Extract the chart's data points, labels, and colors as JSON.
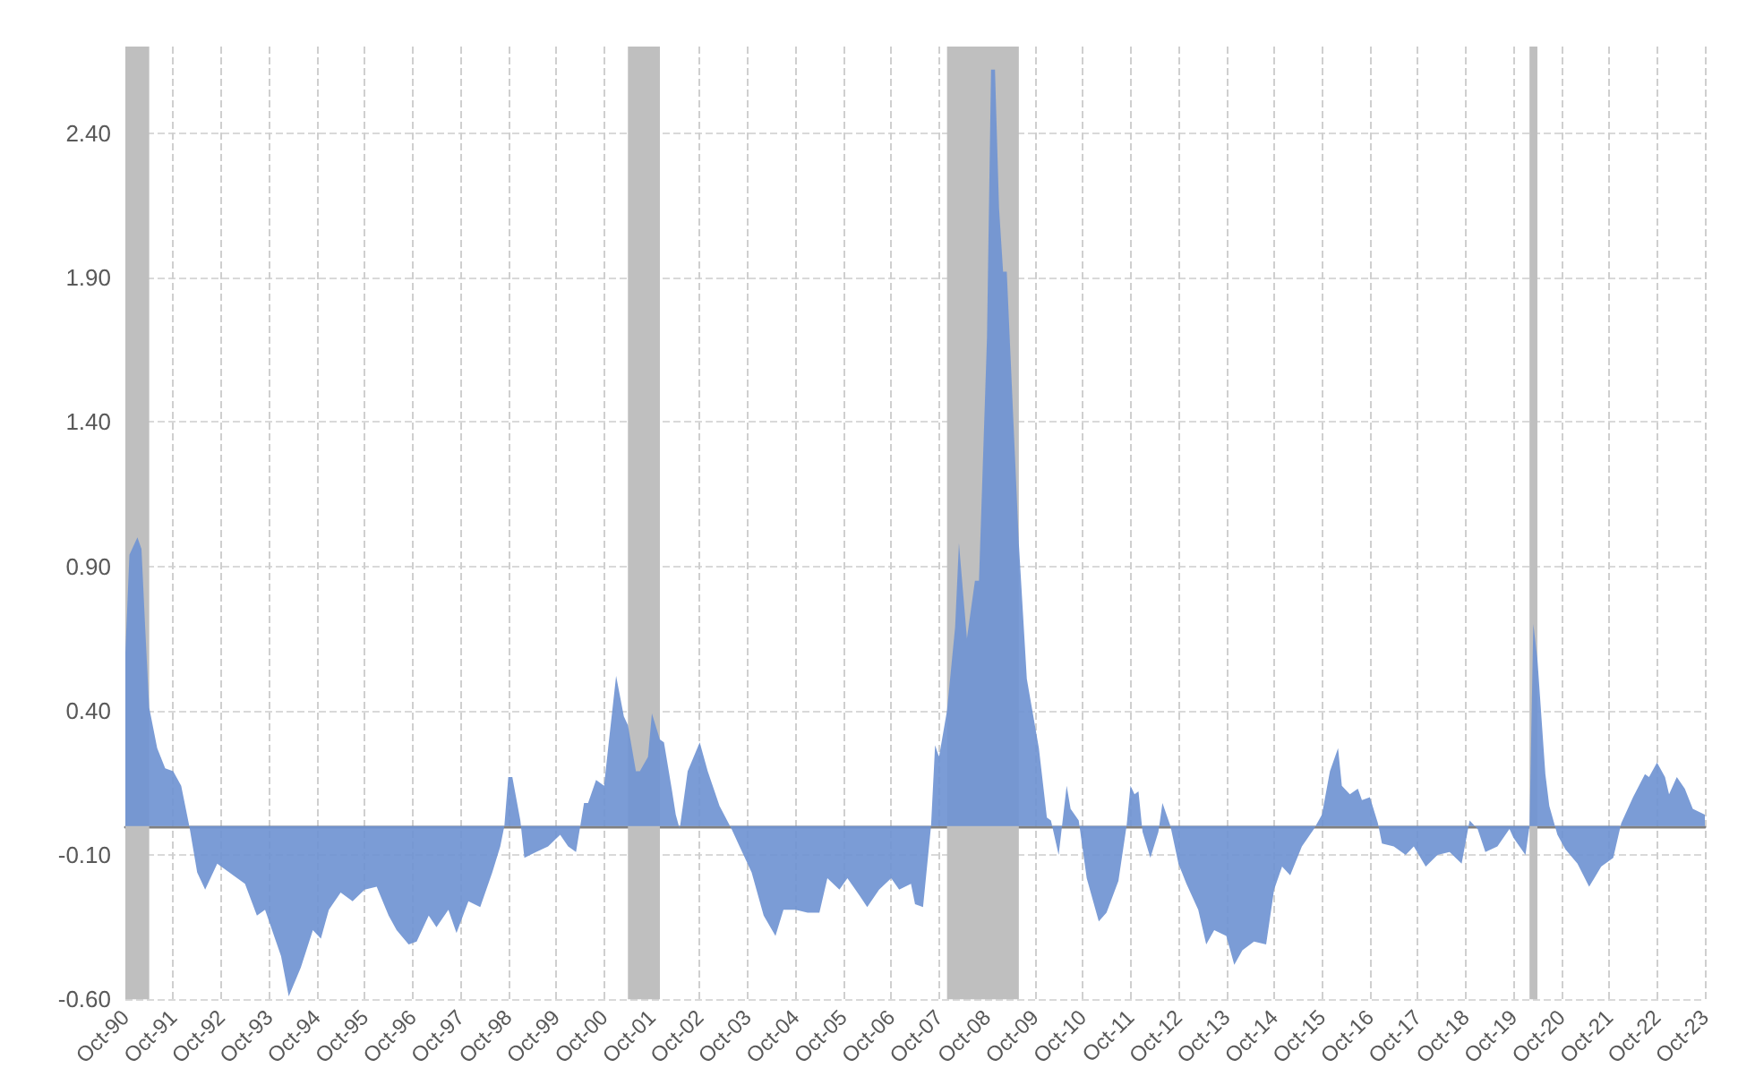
{
  "chart_data": {
    "type": "area",
    "x": [
      "1990-10",
      "1990-11",
      "1991-01",
      "1991-02",
      "1991-03",
      "1991-04",
      "1991-06",
      "1991-08",
      "1991-10",
      "1991-12",
      "1992-02",
      "1992-04",
      "1992-06",
      "1992-09",
      "1993-01",
      "1993-04",
      "1993-07",
      "1993-09",
      "1994-01",
      "1994-03",
      "1994-06",
      "1994-09",
      "1994-11",
      "1995-01",
      "1995-04",
      "1995-07",
      "1995-10",
      "1996-01",
      "1996-04",
      "1996-06",
      "1996-09",
      "1996-11",
      "1997-02",
      "1997-04",
      "1997-07",
      "1997-09",
      "1997-12",
      "1998-03",
      "1998-06",
      "1998-08",
      "1998-09",
      "1998-10",
      "1998-11",
      "1999-01",
      "1999-02",
      "1999-05",
      "1999-08",
      "1999-11",
      "2000-01",
      "2000-03",
      "2000-05",
      "2000-06",
      "2000-08",
      "2000-10",
      "2000-11",
      "2001-01",
      "2001-03",
      "2001-04",
      "2001-06",
      "2001-07",
      "2001-09",
      "2001-10",
      "2001-12",
      "2002-01",
      "2002-03",
      "2002-04",
      "2002-05",
      "2002-07",
      "2002-10",
      "2002-12",
      "2003-03",
      "2003-06",
      "2003-08",
      "2003-11",
      "2004-02",
      "2004-05",
      "2004-07",
      "2004-10",
      "2005-01",
      "2005-04",
      "2005-06",
      "2005-09",
      "2005-11",
      "2006-02",
      "2006-04",
      "2006-07",
      "2006-10",
      "2006-12",
      "2007-03",
      "2007-04",
      "2007-06",
      "2007-08",
      "2007-09",
      "2007-10",
      "2007-12",
      "2008-02",
      "2008-03",
      "2008-05",
      "2008-07",
      "2008-08",
      "2008-10",
      "2008-11",
      "2008-12",
      "2009-01",
      "2009-02",
      "2009-03",
      "2009-06",
      "2009-08",
      "2009-11",
      "2010-01",
      "2010-02",
      "2010-04",
      "2010-06",
      "2010-07",
      "2010-09",
      "2010-11",
      "2011-02",
      "2011-04",
      "2011-07",
      "2011-09",
      "2011-10",
      "2011-11",
      "2011-12",
      "2012-01",
      "2012-03",
      "2012-05",
      "2012-06",
      "2012-08",
      "2012-10",
      "2012-12",
      "2013-03",
      "2013-05",
      "2013-07",
      "2013-10",
      "2013-12",
      "2014-02",
      "2014-05",
      "2014-08",
      "2014-10",
      "2014-12",
      "2015-02",
      "2015-05",
      "2015-08",
      "2015-10",
      "2015-12",
      "2016-02",
      "2016-03",
      "2016-05",
      "2016-07",
      "2016-08",
      "2016-10",
      "2016-12",
      "2017-01",
      "2017-04",
      "2017-07",
      "2017-09",
      "2017-12",
      "2018-03",
      "2018-06",
      "2018-09",
      "2018-11",
      "2019-01",
      "2019-03",
      "2019-06",
      "2019-09",
      "2019-10",
      "2020-01",
      "2020-02",
      "2020-03",
      "2020-04",
      "2020-06",
      "2020-07",
      "2020-09",
      "2020-11",
      "2021-02",
      "2021-05",
      "2021-08",
      "2021-11",
      "2022-01",
      "2022-04",
      "2022-07",
      "2022-08",
      "2022-10",
      "2022-12",
      "2023-01",
      "2023-03",
      "2023-05",
      "2023-07",
      "2023-10"
    ],
    "values": [
      0.6,
      0.94,
      1.0,
      0.96,
      0.69,
      0.41,
      0.27,
      0.2,
      0.19,
      0.14,
      0,
      -0.16,
      -0.22,
      -0.13,
      -0.17,
      -0.2,
      -0.31,
      -0.29,
      -0.45,
      -0.59,
      -0.49,
      -0.36,
      -0.39,
      -0.29,
      -0.23,
      -0.26,
      -0.22,
      -0.21,
      -0.31,
      -0.36,
      -0.41,
      -0.4,
      -0.31,
      -0.35,
      -0.29,
      -0.37,
      -0.26,
      -0.28,
      -0.16,
      -0.07,
      0,
      0.17,
      0.17,
      0.02,
      -0.11,
      -0.09,
      -0.07,
      -0.03,
      -0.07,
      -0.09,
      0.08,
      0.08,
      0.16,
      0.14,
      0.27,
      0.52,
      0.38,
      0.35,
      0.19,
      0.19,
      0.24,
      0.39,
      0.3,
      0.29,
      0.13,
      0.04,
      -0.01,
      0.19,
      0.29,
      0.19,
      0.07,
      -0.01,
      -0.07,
      -0.16,
      -0.31,
      -0.38,
      -0.29,
      -0.29,
      -0.3,
      -0.3,
      -0.18,
      -0.22,
      -0.18,
      -0.24,
      -0.28,
      -0.22,
      -0.18,
      -0.22,
      -0.2,
      -0.27,
      -0.28,
      0,
      0.28,
      0.24,
      0.4,
      0.69,
      0.98,
      0.65,
      0.85,
      0.85,
      1.69,
      2.62,
      2.62,
      2.14,
      1.92,
      1.92,
      0.98,
      0.51,
      0.27,
      0.03,
      0.02,
      -0.1,
      0.14,
      0.06,
      0.02,
      -0.18,
      -0.33,
      -0.3,
      -0.19,
      0,
      0.14,
      0.11,
      0.12,
      -0.02,
      -0.11,
      -0.02,
      0.08,
      0,
      -0.13,
      -0.2,
      -0.29,
      -0.41,
      -0.36,
      -0.38,
      -0.48,
      -0.43,
      -0.4,
      -0.41,
      -0.22,
      -0.14,
      -0.17,
      -0.07,
      -0.01,
      0.04,
      0.19,
      0.27,
      0.14,
      0.11,
      0.13,
      0.09,
      0.1,
      0.01,
      -0.06,
      -0.07,
      -0.1,
      -0.07,
      -0.14,
      -0.1,
      -0.09,
      -0.13,
      0.02,
      -0.01,
      -0.09,
      -0.07,
      -0.01,
      -0.04,
      -0.1,
      0,
      0.7,
      0.58,
      0.18,
      0.07,
      -0.03,
      -0.08,
      -0.13,
      -0.21,
      -0.14,
      -0.11,
      0.01,
      0.1,
      0.18,
      0.17,
      0.22,
      0.17,
      0.11,
      0.17,
      0.13,
      0.06,
      0.04
    ],
    "color": "#7094d2",
    "xlim": [
      "1990-10",
      "2023-10"
    ],
    "xticks": [
      {
        "value": "1990-10",
        "label": "Oct-90"
      },
      {
        "value": "1991-10",
        "label": "Oct-91"
      },
      {
        "value": "1992-10",
        "label": "Oct-92"
      },
      {
        "value": "1993-10",
        "label": "Oct-93"
      },
      {
        "value": "1994-10",
        "label": "Oct-94"
      },
      {
        "value": "1995-10",
        "label": "Oct-95"
      },
      {
        "value": "1996-10",
        "label": "Oct-96"
      },
      {
        "value": "1997-10",
        "label": "Oct-97"
      },
      {
        "value": "1998-10",
        "label": "Oct-98"
      },
      {
        "value": "1999-10",
        "label": "Oct-99"
      },
      {
        "value": "2000-10",
        "label": "Oct-00"
      },
      {
        "value": "2001-10",
        "label": "Oct-01"
      },
      {
        "value": "2002-10",
        "label": "Oct-02"
      },
      {
        "value": "2003-10",
        "label": "Oct-03"
      },
      {
        "value": "2004-10",
        "label": "Oct-04"
      },
      {
        "value": "2005-10",
        "label": "Oct-05"
      },
      {
        "value": "2006-10",
        "label": "Oct-06"
      },
      {
        "value": "2007-10",
        "label": "Oct-07"
      },
      {
        "value": "2008-10",
        "label": "Oct-08"
      },
      {
        "value": "2009-10",
        "label": "Oct-09"
      },
      {
        "value": "2010-10",
        "label": "Oct-10"
      },
      {
        "value": "2011-10",
        "label": "Oct-11"
      },
      {
        "value": "2012-10",
        "label": "Oct-12"
      },
      {
        "value": "2013-10",
        "label": "Oct-13"
      },
      {
        "value": "2014-10",
        "label": "Oct-14"
      },
      {
        "value": "2015-10",
        "label": "Oct-15"
      },
      {
        "value": "2016-10",
        "label": "Oct-16"
      },
      {
        "value": "2017-10",
        "label": "Oct-17"
      },
      {
        "value": "2018-10",
        "label": "Oct-18"
      },
      {
        "value": "2019-10",
        "label": "Oct-19"
      },
      {
        "value": "2020-10",
        "label": "Oct-20"
      },
      {
        "value": "2021-10",
        "label": "Oct-21"
      },
      {
        "value": "2022-10",
        "label": "Oct-22"
      },
      {
        "value": "2023-10",
        "label": "Oct-23"
      }
    ],
    "ylim": [
      -0.6,
      2.7
    ],
    "yticks": [
      {
        "value": -0.6,
        "label": "-0.60"
      },
      {
        "value": -0.1,
        "label": "-0.10"
      },
      {
        "value": 0.4,
        "label": "0.40"
      },
      {
        "value": 0.9,
        "label": "0.90"
      },
      {
        "value": 1.4,
        "label": "1.40"
      },
      {
        "value": 1.9,
        "label": "1.90"
      },
      {
        "value": 2.4,
        "label": "2.40"
      }
    ],
    "bands": [
      {
        "axis": "x",
        "from": "1990-10",
        "to": "1991-04",
        "color": "#bfbfbf"
      },
      {
        "axis": "x",
        "from": "2001-04",
        "to": "2001-12",
        "color": "#bfbfbf"
      },
      {
        "axis": "x",
        "from": "2007-12",
        "to": "2009-06",
        "color": "#bfbfbf"
      },
      {
        "axis": "x",
        "from": "2020-02",
        "to": "2020-04",
        "color": "#bfbfbf"
      }
    ],
    "grid": true
  }
}
